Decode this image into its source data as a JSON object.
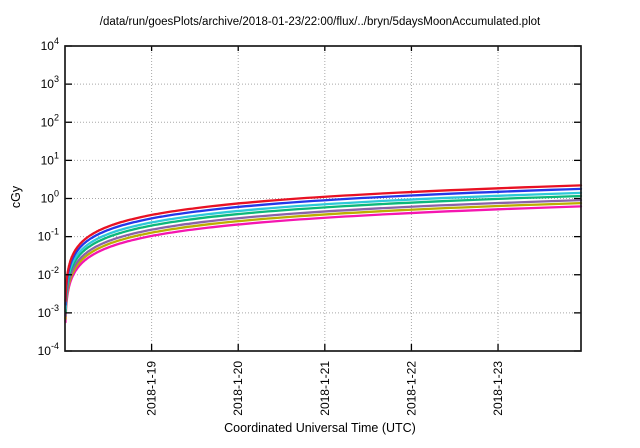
{
  "chart_data": {
    "type": "line",
    "title": "/data/run/goesPlots/archive/2018-01-23/22:00/flux/../bryn/5daysMoonAccumulated.plot",
    "xlabel": "Coordinated Universal Time (UTC)",
    "ylabel": "cGy",
    "x_axis": {
      "scale": "time-linear",
      "span_days": 5.958,
      "ticks": [
        {
          "day": 1,
          "label": "2018-1-19"
        },
        {
          "day": 2,
          "label": "2018-1-20"
        },
        {
          "day": 3,
          "label": "2018-1-21"
        },
        {
          "day": 4,
          "label": "2018-1-22"
        },
        {
          "day": 5,
          "label": "2018-1-23"
        }
      ]
    },
    "y_axis": {
      "scale": "log10",
      "unit": "cGy",
      "exponent_range": [
        -4,
        4
      ],
      "tick_exponents": [
        4,
        3,
        2,
        1,
        0,
        -1,
        -2,
        -3,
        -4
      ]
    },
    "grid": {
      "shown": true,
      "style": "dotted",
      "color": "#a8a8a8"
    },
    "legend": {
      "shown": false
    },
    "model": "accumulated_cGy = rate_cGy_per_day * days_elapsed (plotted on log y-axis)",
    "series": [
      {
        "name": "red",
        "color": "#e81123",
        "rate_cGy_per_day": 0.37,
        "final_cGy": 2.2
      },
      {
        "name": "blue",
        "color": "#2438e8",
        "rate_cGy_per_day": 0.3,
        "final_cGy": 1.79
      },
      {
        "name": "cyan",
        "color": "#2ec8d8",
        "rate_cGy_per_day": 0.235,
        "final_cGy": 1.4
      },
      {
        "name": "green",
        "color": "#0cb87a",
        "rate_cGy_per_day": 0.195,
        "final_cGy": 1.16
      },
      {
        "name": "purple",
        "color": "#8a62a8",
        "rate_cGy_per_day": 0.152,
        "final_cGy": 0.91
      },
      {
        "name": "yellow",
        "color": "#bcae00",
        "rate_cGy_per_day": 0.127,
        "final_cGy": 0.76
      },
      {
        "name": "magenta",
        "color": "#f516b0",
        "rate_cGy_per_day": 0.104,
        "final_cGy": 0.62
      }
    ]
  }
}
